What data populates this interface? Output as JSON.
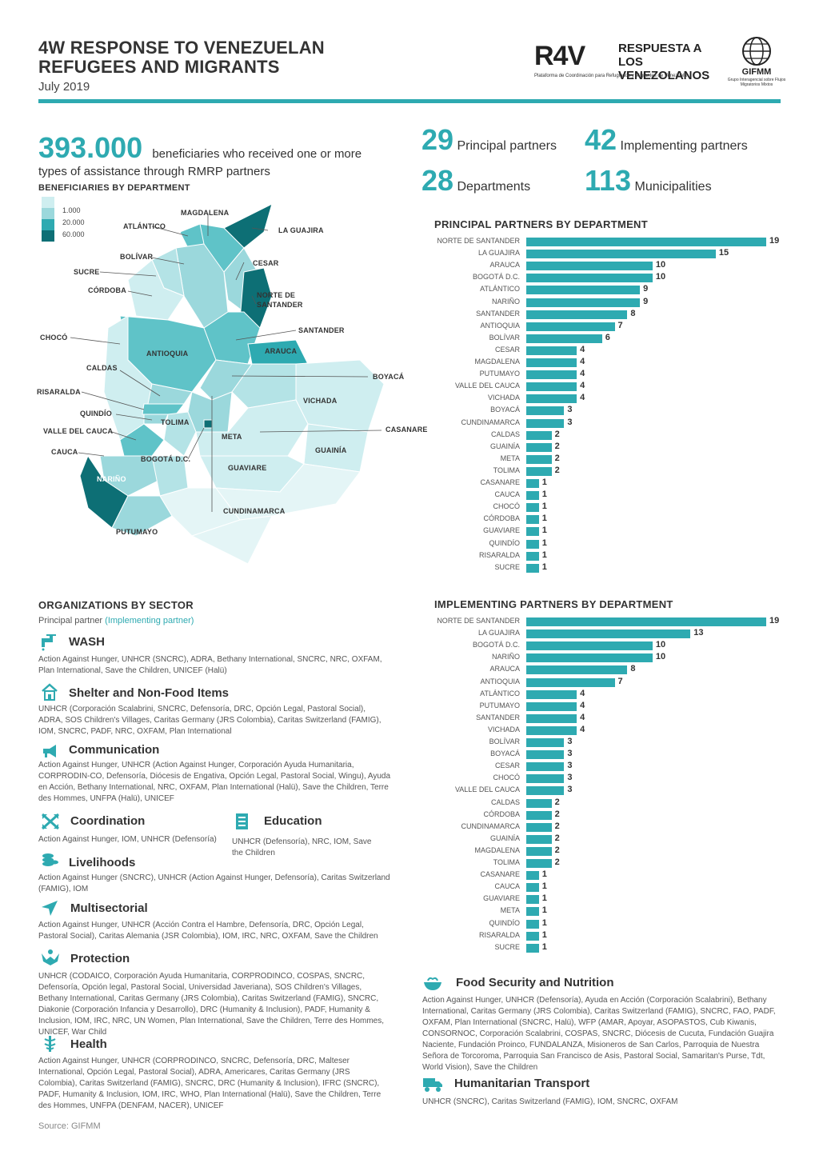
{
  "header": {
    "title": "4W RESPONSE TO VENEZUELAN REFUGEES AND MIGRANTS",
    "date": "July 2019",
    "logo_r4v": "R4V",
    "logo_r4v_text": "RESPUESTA A LOS VENEZOLANOS",
    "logo_r4v_tagline": "Plataforma de Coordinación para Refugiados y Migrantes de Venezuela",
    "logo_gifmm": "GIFMM",
    "logo_gifmm_sub": "Grupo Interagencial sobre Flujos Migratorios Mixtos",
    "accent_color": "#2eaab1"
  },
  "beneficiaries": {
    "number": "393.000",
    "text": "beneficiaries who received one or more types of assistance through RMRP partners"
  },
  "stats": [
    {
      "number": "29",
      "label": "Principal partners"
    },
    {
      "number": "42",
      "label": "Implementing partners"
    },
    {
      "number": "28",
      "label": "Departments"
    },
    {
      "number": "113",
      "label": "Municipalities"
    }
  ],
  "map": {
    "title": "BENEFICIARIES BY DEPARTMENT",
    "legend": [
      {
        "label": "1.000",
        "color": "#cfeef0"
      },
      {
        "label": "20.000",
        "color": "#5fc3c8"
      },
      {
        "label": "60.000",
        "color": "#0d6f75"
      }
    ],
    "labels": [
      "ATLÁNTICO",
      "MAGDALENA",
      "LA GUAJIRA",
      "BOLÍVAR",
      "SUCRE",
      "CESAR",
      "CÓRDOBA",
      "NORTE DE SANTANDER",
      "SANTANDER",
      "CHOCÓ",
      "ANTIOQUIA",
      "ARAUCA",
      "CALDAS",
      "BOYACÁ",
      "RISARALDA",
      "VICHADA",
      "QUINDÍO",
      "TOLIMA",
      "CASANARE",
      "VALLE DEL CAUCA",
      "META",
      "CAUCA",
      "GUAINÍA",
      "BOGOTÁ D.C.",
      "NARIÑO",
      "GUAVIARE",
      "CUNDINAMARCA",
      "PUTUMAYO"
    ]
  },
  "principal_chart": {
    "title": "PRINCIPAL PARTNERS BY DEPARTMENT",
    "chart_data": {
      "type": "bar",
      "categories": [
        "NORTE DE SANTANDER",
        "LA GUAJIRA",
        "ARAUCA",
        "BOGOTÁ D.C.",
        "ATLÁNTICO",
        "NARIÑO",
        "SANTANDER",
        "ANTIOQUIA",
        "BOLÍVAR",
        "CESAR",
        "MAGDALENA",
        "PUTUMAYO",
        "VALLE DEL CAUCA",
        "VICHADA",
        "BOYACÁ",
        "CUNDINAMARCA",
        "CALDAS",
        "GUAINÍA",
        "META",
        "TOLIMA",
        "CASANARE",
        "CAUCA",
        "CHOCÓ",
        "CÓRDOBA",
        "GUAVIARE",
        "QUINDÍO",
        "RISARALDA",
        "SUCRE"
      ],
      "values": [
        19,
        15,
        10,
        10,
        9,
        9,
        8,
        7,
        6,
        4,
        4,
        4,
        4,
        4,
        3,
        3,
        2,
        2,
        2,
        2,
        1,
        1,
        1,
        1,
        1,
        1,
        1,
        1
      ],
      "orientation": "horizontal",
      "xlim": [
        0,
        19
      ]
    }
  },
  "implementing_chart": {
    "title": "IMPLEMENTING PARTNERS BY DEPARTMENT",
    "chart_data": {
      "type": "bar",
      "categories": [
        "NORTE DE SANTANDER",
        "LA GUAJIRA",
        "BOGOTÁ D.C.",
        "NARIÑO",
        "ARAUCA",
        "ANTIOQUIA",
        "ATLÁNTICO",
        "PUTUMAYO",
        "SANTANDER",
        "VICHADA",
        "BOLÍVAR",
        "BOYACÁ",
        "CESAR",
        "CHOCÓ",
        "VALLE DEL CAUCA",
        "CALDAS",
        "CÓRDOBA",
        "CUNDINAMARCA",
        "GUAINÍA",
        "MAGDALENA",
        "TOLIMA",
        "CASANARE",
        "CAUCA",
        "GUAVIARE",
        "META",
        "QUINDÍO",
        "RISARALDA",
        "SUCRE"
      ],
      "values": [
        19,
        13,
        10,
        10,
        8,
        7,
        4,
        4,
        4,
        4,
        3,
        3,
        3,
        3,
        3,
        2,
        2,
        2,
        2,
        2,
        2,
        1,
        1,
        1,
        1,
        1,
        1,
        1
      ],
      "orientation": "horizontal",
      "xlim": [
        0,
        19
      ]
    }
  },
  "orgs": {
    "title": "ORGANIZATIONS BY SECTOR",
    "legend_principal": "Principal partner",
    "legend_implementing": "(Implementing partner)",
    "sectors": [
      {
        "name": "WASH",
        "icon": "tap-icon",
        "text": "Action Against Hunger, UNHCR (SNCRC), ADRA, Bethany International, SNCRC, NRC, OXFAM, Plan International, Save the Children, UNICEF (Halü)"
      },
      {
        "name": "Shelter and Non-Food Items",
        "icon": "house-icon",
        "text": "UNHCR (Corporación Scalabrini, SNCRC, Defensoría, DRC, Opción Legal, Pastoral Social), ADRA, SOS Children's Villages, Caritas Germany (JRS Colombia), Caritas Switzerland (FAMIG), IOM, SNCRC, PADF, NRC, OXFAM, Plan International"
      },
      {
        "name": "Communication",
        "icon": "megaphone-icon",
        "text": "Action Against Hunger, UNHCR (Action Against Hunger, Corporación Ayuda Humanitaria, CORPRODIN-CO, Defensoría, Diócesis de Engativa, Opción Legal, Pastoral Social, Wingu), Ayuda en Acción, Bethany International, NRC, OXFAM, Plan International (Halü), Save the Children, Terre des Hommes, UNFPA (Halü), UNICEF"
      },
      {
        "name": "Coordination",
        "icon": "arrows-icon",
        "text": "Action Against Hunger, IOM, UNHCR (Defensoría)"
      },
      {
        "name": "Education",
        "icon": "book-icon",
        "text": "UNHCR (Defensoría), NRC, IOM, Save the Children"
      },
      {
        "name": "Livelihoods",
        "icon": "coins-icon",
        "text": "Action Against Hunger (SNCRC), UNHCR (Action Against Hunger, Defensoría), Caritas Switzerland (FAMIG), IOM"
      },
      {
        "name": "Multisectorial",
        "icon": "pointer-icon",
        "text": "Action Against Hunger, UNHCR (Acción Contra el Hambre, Defensoría, DRC, Opción Legal, Pastoral Social), Caritas Alemania (JSR Colombia), IOM, IRC, NRC, OXFAM, Save the Children"
      },
      {
        "name": "Protection",
        "icon": "hands-icon",
        "text": "UNHCR (CODAICO, Corporación Ayuda Humanitaria, CORPRODINCO, COSPAS, SNCRC, Defensoría, Opción legal, Pastoral Social, Universidad Javeriana), SOS Children's Villages, Bethany International, Caritas Germany (JRS Colombia), Caritas Switzerland (FAMIG), SNCRC, Diakonie (Corporación Infancia y Desarrollo), DRC (Humanity & Inclusion), PADF, Humanity & Inclusion, IOM, IRC, NRC, UN Women, Plan International, Save the Children, Terre des Hommes, UNICEF, War Child"
      },
      {
        "name": "Health",
        "icon": "caduceus-icon",
        "text": "Action Against Hunger, UNHCR (CORPRODINCO, SNCRC, Defensoría, DRC, Malteser International, Opción Legal, Pastoral Social), ADRA, Americares, Caritas Germany (JRS Colombia), Caritas Switzerland (FAMIG), SNCRC, DRC (Humanity & Inclusion), IFRC (SNCRC), PADF, Humanity & Inclusion, IOM, IRC, WHO, Plan International (Halü), Save the Children, Terre des Hommes, UNFPA (DENFAM, NACER), UNICEF"
      },
      {
        "name": "Food Security and Nutrition",
        "icon": "bowl-icon",
        "text": "Action Against Hunger, UNHCR (Defensoría), Ayuda en Acción (Corporación Scalabrini), Bethany International, Caritas Germany (JRS Colombia), Caritas Switzerland (FAMIG), SNCRC, FAO, PADF, OXFAM, Plan International (SNCRC, Halü), WFP (AMAR, Apoyar, ASOPASTOS, Cub Kiwanis, CONSORNOC, Corporación Scalabrini, COSPAS, SNCRC, Diócesis de Cucuta, Fundación Guajira Naciente, Fundación Proinco, FUNDALANZA, Misioneros de San Carlos, Parroquia de Nuestra Señora de Torcoroma, Parroquia San Francisco de Asis, Pastoral Social, Samaritan's Purse, Tdt, World Vision), Save the Children"
      },
      {
        "name": "Humanitarian Transport",
        "icon": "truck-icon",
        "text": "UNHCR (SNCRC), Caritas Switzerland (FAMIG), IOM, SNCRC, OXFAM"
      }
    ]
  },
  "source": "Source: GIFMM"
}
